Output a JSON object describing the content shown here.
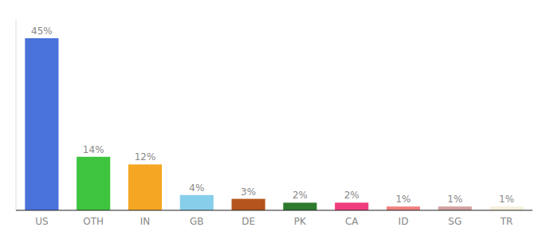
{
  "chart_data": {
    "type": "bar",
    "categories": [
      "US",
      "OTH",
      "IN",
      "GB",
      "DE",
      "PK",
      "CA",
      "ID",
      "SG",
      "TR"
    ],
    "values": [
      45,
      14,
      12,
      4,
      3,
      2,
      2,
      1,
      1,
      1
    ],
    "value_labels": [
      "45%",
      "14%",
      "12%",
      "4%",
      "3%",
      "2%",
      "2%",
      "1%",
      "1%",
      "1%"
    ],
    "colors": [
      "#4a72db",
      "#3ec43e",
      "#f5a623",
      "#87ceeb",
      "#b5541c",
      "#2d7a2d",
      "#f03d7e",
      "#f08080",
      "#d4a0a0",
      "#f5f0dc"
    ],
    "ylim": [
      0,
      50
    ],
    "data_labels": true,
    "tick_labels": "x",
    "grid": false
  }
}
